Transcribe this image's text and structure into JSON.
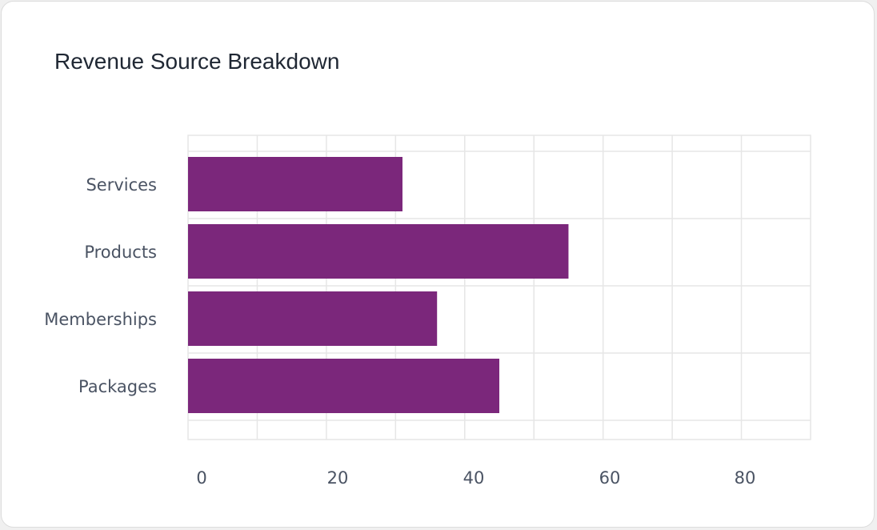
{
  "chart_data": {
    "type": "bar",
    "orientation": "horizontal",
    "title": "Revenue Source Breakdown",
    "categories": [
      "Services",
      "Products",
      "Memberships",
      "Packages"
    ],
    "values": [
      31,
      55,
      36,
      45
    ],
    "xlabel": "",
    "ylabel": "",
    "xlim": [
      0,
      90
    ],
    "xticks": [
      0,
      20,
      40,
      60,
      80
    ],
    "grid": true,
    "colors": {
      "bar": "#7b277b",
      "grid": "#e6e6e6",
      "text": "#4a5363",
      "title": "#1f2733"
    }
  }
}
